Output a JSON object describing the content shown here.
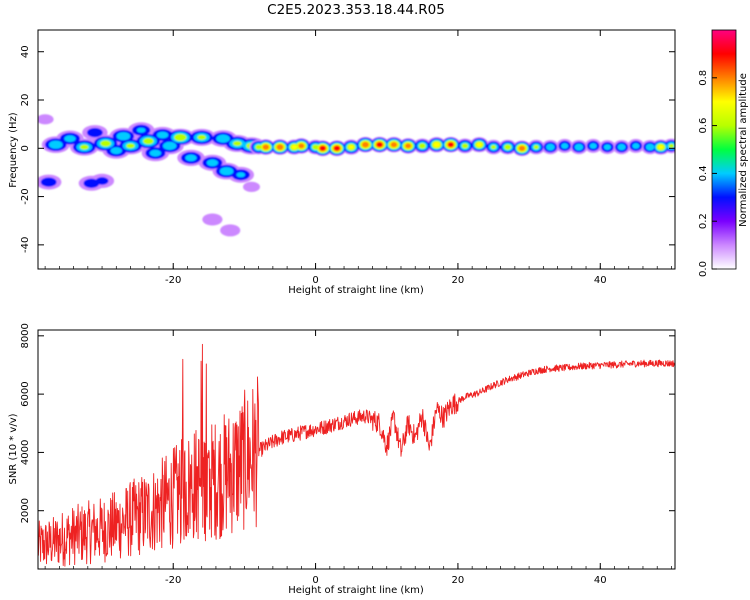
{
  "title": "C2E5.2023.353.18.44.R05",
  "chart_data": [
    {
      "type": "heatmap",
      "xlabel": "Height of straight line (km)",
      "ylabel": "Frequency (Hz)",
      "xlim": [
        -39,
        50.5
      ],
      "ylim": [
        -50,
        49
      ],
      "xticks": [
        -20,
        0,
        20,
        40
      ],
      "yticks": [
        -40,
        -20,
        0,
        20,
        40
      ],
      "colorbar": {
        "label": "Normalized spectral amplitude",
        "range": [
          0,
          1
        ],
        "ticks": [
          0.0,
          0.2,
          0.4,
          0.6,
          0.8
        ],
        "tick_labels": [
          "0.0",
          "0.2",
          "0.4",
          "0.6",
          "0.8"
        ],
        "colormap": [
          "#ffffff",
          "#cc88ff",
          "#7a00ff",
          "#0010ff",
          "#00ccff",
          "#00ff40",
          "#b8ff00",
          "#ffff00",
          "#ff8000",
          "#ff0000",
          "#ff0080"
        ]
      },
      "blobs": [
        {
          "x": -36.5,
          "y": 1.5,
          "amp": 0.5
        },
        {
          "x": -34.5,
          "y": 4.0,
          "amp": 0.45
        },
        {
          "x": -32.5,
          "y": 0.5,
          "amp": 0.55
        },
        {
          "x": -31.0,
          "y": 6.5,
          "amp": 0.35
        },
        {
          "x": -29.5,
          "y": 2.0,
          "amp": 0.6
        },
        {
          "x": -28.0,
          "y": -1.0,
          "amp": 0.45
        },
        {
          "x": -27.0,
          "y": 5.0,
          "amp": 0.5
        },
        {
          "x": -26.0,
          "y": 1.0,
          "amp": 0.55
        },
        {
          "x": -24.5,
          "y": 7.5,
          "amp": 0.4
        },
        {
          "x": -23.5,
          "y": 3.0,
          "amp": 0.6
        },
        {
          "x": -22.5,
          "y": -2.0,
          "amp": 0.45
        },
        {
          "x": -21.5,
          "y": 5.5,
          "amp": 0.45
        },
        {
          "x": -20.5,
          "y": 1.0,
          "amp": 0.5
        },
        {
          "x": -19.0,
          "y": 4.5,
          "amp": 0.65
        },
        {
          "x": -17.5,
          "y": -4.0,
          "amp": 0.45
        },
        {
          "x": -16.0,
          "y": 4.5,
          "amp": 0.55
        },
        {
          "x": -14.5,
          "y": -6.0,
          "amp": 0.45
        },
        {
          "x": -13.0,
          "y": 4.0,
          "amp": 0.5
        },
        {
          "x": -12.5,
          "y": -9.5,
          "amp": 0.5
        },
        {
          "x": -11.0,
          "y": 2.0,
          "amp": 0.55
        },
        {
          "x": -10.5,
          "y": -11.0,
          "amp": 0.4
        },
        {
          "x": -9.0,
          "y": 1.0,
          "amp": 0.6
        },
        {
          "x": -37.5,
          "y": -14.0,
          "amp": 0.35
        },
        {
          "x": -31.5,
          "y": -14.5,
          "amp": 0.35
        },
        {
          "x": -30.0,
          "y": -13.5,
          "amp": 0.3
        },
        {
          "x": -14.5,
          "y": -29.5,
          "amp": 0.22
        },
        {
          "x": -12.0,
          "y": -34.0,
          "amp": 0.22
        },
        {
          "x": -9.0,
          "y": -16.0,
          "amp": 0.18
        },
        {
          "x": -38.0,
          "y": 12.0,
          "amp": 0.18
        }
      ],
      "ridge": [
        {
          "x": -8,
          "y": 0.5,
          "amp": 0.6
        },
        {
          "x": -7,
          "y": 0.5,
          "amp": 0.88
        },
        {
          "x": -5,
          "y": 0.5,
          "amp": 0.9
        },
        {
          "x": -3,
          "y": 0.5,
          "amp": 0.72
        },
        {
          "x": -2,
          "y": 1.0,
          "amp": 0.85
        },
        {
          "x": 0,
          "y": 0.5,
          "amp": 0.62
        },
        {
          "x": 1,
          "y": 0.0,
          "amp": 0.95
        },
        {
          "x": 3,
          "y": 0.0,
          "amp": 0.95
        },
        {
          "x": 5,
          "y": 0.5,
          "amp": 0.7
        },
        {
          "x": 7,
          "y": 1.5,
          "amp": 0.9
        },
        {
          "x": 9,
          "y": 1.5,
          "amp": 0.95
        },
        {
          "x": 11,
          "y": 1.5,
          "amp": 0.88
        },
        {
          "x": 13,
          "y": 1.0,
          "amp": 0.85
        },
        {
          "x": 15,
          "y": 1.0,
          "amp": 0.62
        },
        {
          "x": 17,
          "y": 1.5,
          "amp": 0.78
        },
        {
          "x": 19,
          "y": 1.5,
          "amp": 0.92
        },
        {
          "x": 21,
          "y": 1.0,
          "amp": 0.6
        },
        {
          "x": 23,
          "y": 1.5,
          "amp": 0.72
        },
        {
          "x": 25,
          "y": 0.5,
          "amp": 0.55
        },
        {
          "x": 27,
          "y": 0.5,
          "amp": 0.62
        },
        {
          "x": 29,
          "y": 0.0,
          "amp": 0.88
        },
        {
          "x": 31,
          "y": 0.5,
          "amp": 0.55
        },
        {
          "x": 33,
          "y": 0.5,
          "amp": 0.5
        },
        {
          "x": 35,
          "y": 1.0,
          "amp": 0.45
        },
        {
          "x": 37,
          "y": 0.5,
          "amp": 0.5
        },
        {
          "x": 39,
          "y": 1.0,
          "amp": 0.45
        },
        {
          "x": 41,
          "y": 0.5,
          "amp": 0.45
        },
        {
          "x": 43,
          "y": 0.5,
          "amp": 0.48
        },
        {
          "x": 45,
          "y": 1.0,
          "amp": 0.45
        },
        {
          "x": 47,
          "y": 0.5,
          "amp": 0.5
        },
        {
          "x": 48.5,
          "y": 0.5,
          "amp": 0.72
        },
        {
          "x": 50,
          "y": 1.0,
          "amp": 0.55
        }
      ]
    },
    {
      "type": "line",
      "xlabel": "Height of straight line (km)",
      "ylabel": "SNR (10 * v/v)",
      "xlim": [
        -39,
        50.5
      ],
      "ylim": [
        0,
        8200
      ],
      "xticks": [
        -20,
        0,
        20,
        40
      ],
      "yticks": [
        2000,
        4000,
        6000,
        8000
      ],
      "color": "#ee2222",
      "series": [
        {
          "values": [
            {
              "x": -39,
              "y": 800
            },
            {
              "x": -37,
              "y": 900
            },
            {
              "x": -35,
              "y": 1100
            },
            {
              "x": -33,
              "y": 1200
            },
            {
              "x": -31,
              "y": 1300
            },
            {
              "x": -29,
              "y": 1400
            },
            {
              "x": -27,
              "y": 1600
            },
            {
              "x": -25,
              "y": 1800
            },
            {
              "x": -23,
              "y": 2000
            },
            {
              "x": -21,
              "y": 2300
            },
            {
              "x": -19,
              "y": 2600
            },
            {
              "x": -17,
              "y": 2900
            },
            {
              "x": -15,
              "y": 3000
            },
            {
              "x": -13,
              "y": 3200
            },
            {
              "x": -11,
              "y": 3500
            },
            {
              "x": -9,
              "y": 3900
            },
            {
              "x": -7,
              "y": 4200
            },
            {
              "x": -5,
              "y": 4500
            },
            {
              "x": -3,
              "y": 4600
            },
            {
              "x": -1,
              "y": 4750
            },
            {
              "x": 1,
              "y": 4850
            },
            {
              "x": 3,
              "y": 5000
            },
            {
              "x": 5,
              "y": 5150
            },
            {
              "x": 7,
              "y": 5250
            },
            {
              "x": 9,
              "y": 5000
            },
            {
              "x": 10,
              "y": 4200
            },
            {
              "x": 11,
              "y": 5200
            },
            {
              "x": 12,
              "y": 4000
            },
            {
              "x": 13,
              "y": 5000
            },
            {
              "x": 14,
              "y": 4500
            },
            {
              "x": 15,
              "y": 5300
            },
            {
              "x": 16,
              "y": 4100
            },
            {
              "x": 17,
              "y": 5500
            },
            {
              "x": 18,
              "y": 5200
            },
            {
              "x": 19,
              "y": 5600
            },
            {
              "x": 21,
              "y": 5900
            },
            {
              "x": 23,
              "y": 6050
            },
            {
              "x": 25,
              "y": 6300
            },
            {
              "x": 27,
              "y": 6500
            },
            {
              "x": 29,
              "y": 6650
            },
            {
              "x": 31,
              "y": 6800
            },
            {
              "x": 33,
              "y": 6880
            },
            {
              "x": 35,
              "y": 6900
            },
            {
              "x": 37,
              "y": 6950
            },
            {
              "x": 39,
              "y": 6980
            },
            {
              "x": 41,
              "y": 7000
            },
            {
              "x": 43,
              "y": 7020
            },
            {
              "x": 45,
              "y": 7050
            },
            {
              "x": 47,
              "y": 7050
            },
            {
              "x": 49,
              "y": 7060
            },
            {
              "x": 50.5,
              "y": 7050
            }
          ]
        }
      ]
    }
  ]
}
